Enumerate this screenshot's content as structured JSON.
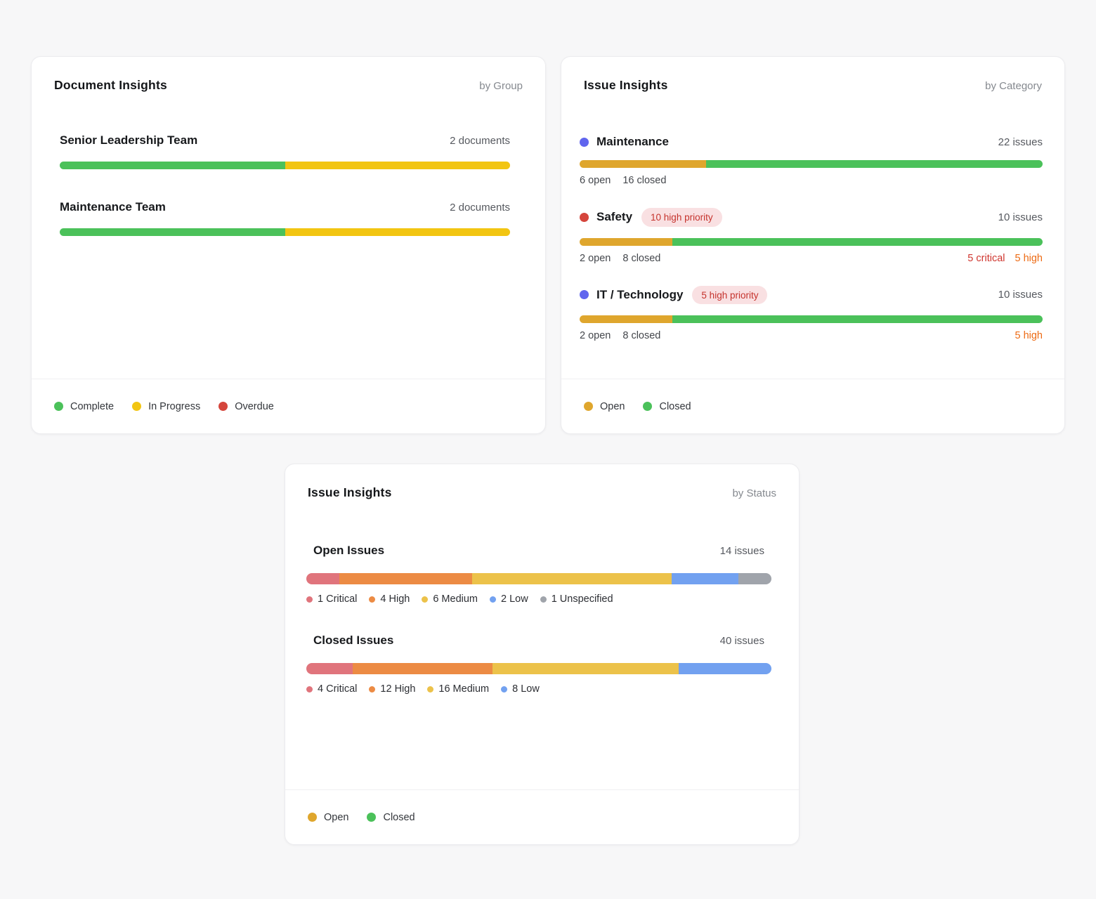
{
  "chart_data": [
    {
      "type": "bar",
      "title": "Document Insights",
      "subtitle": "by Group",
      "orientation": "horizontal",
      "stacked": true,
      "categories": [
        "Senior Leadership Team",
        "Maintenance Team"
      ],
      "category_totals": [
        "2 documents",
        "2 documents"
      ],
      "series": [
        {
          "name": "Complete",
          "color": "#4bc15a",
          "values": [
            1,
            1
          ]
        },
        {
          "name": "In Progress",
          "color": "#f2c512",
          "values": [
            1,
            1
          ]
        },
        {
          "name": "Overdue",
          "color": "#d5453c",
          "values": [
            0,
            0
          ]
        }
      ],
      "legend_position": "bottom"
    },
    {
      "type": "bar",
      "title": "Issue Insights",
      "subtitle": "by Category",
      "orientation": "horizontal",
      "stacked": true,
      "categories": [
        "Maintenance",
        "Safety",
        "IT / Technology"
      ],
      "category_totals": [
        "22 issues",
        "10 issues",
        "10 issues"
      ],
      "series": [
        {
          "name": "Open",
          "color": "#dfa62d",
          "values": [
            6,
            2,
            2
          ]
        },
        {
          "name": "Closed",
          "color": "#4bc15a",
          "values": [
            16,
            8,
            8
          ]
        }
      ],
      "annotations": [
        {
          "category": "Safety",
          "badge": "10 high priority",
          "notes": [
            "5 critical",
            "5 high"
          ]
        },
        {
          "category": "IT / Technology",
          "badge": "5 high priority",
          "notes": [
            "5 high"
          ]
        }
      ],
      "legend_position": "bottom"
    },
    {
      "type": "bar",
      "title": "Issue Insights",
      "subtitle": "by Status",
      "orientation": "horizontal",
      "stacked": true,
      "categories": [
        "Open Issues",
        "Closed Issues"
      ],
      "category_totals": [
        "14 issues",
        "40 issues"
      ],
      "series": [
        {
          "name": "Critical",
          "color": "#e0747c",
          "values": [
            1,
            4
          ]
        },
        {
          "name": "High",
          "color": "#ec8b44",
          "values": [
            4,
            12
          ]
        },
        {
          "name": "Medium",
          "color": "#ecc24a",
          "values": [
            6,
            16
          ]
        },
        {
          "name": "Low",
          "color": "#72a1f0",
          "values": [
            2,
            8
          ]
        },
        {
          "name": "Unspecified",
          "color": "#a0a4ab",
          "values": [
            1,
            0
          ]
        }
      ],
      "legend_position": "bottom"
    }
  ],
  "doc": {
    "title": "Document Insights",
    "subtitle": "by Group",
    "rows": [
      {
        "label": "Senior Leadership Team",
        "count": "2 documents",
        "bar": [
          {
            "label": "Complete",
            "value": 1,
            "color": "#4bc15a"
          },
          {
            "label": "In Progress",
            "value": 1,
            "color": "#f2c512"
          }
        ]
      },
      {
        "label": "Maintenance Team",
        "count": "2 documents",
        "bar": [
          {
            "label": "Complete",
            "value": 1,
            "color": "#4bc15a"
          },
          {
            "label": "In Progress",
            "value": 1,
            "color": "#f2c512"
          }
        ]
      }
    ],
    "legend": [
      {
        "label": "Complete",
        "color": "#4bc15a"
      },
      {
        "label": "In Progress",
        "color": "#f2c512"
      },
      {
        "label": "Overdue",
        "color": "#d5453c"
      }
    ]
  },
  "cat": {
    "title": "Issue Insights",
    "subtitle": "by Category",
    "rows": [
      {
        "label": "Maintenance",
        "dot_color": "#6065ee",
        "count": "22 issues",
        "open_stat": "6 open",
        "closed_stat": "16 closed",
        "bar": [
          {
            "label": "Open",
            "value": 6,
            "color": "#dfa62d"
          },
          {
            "label": "Closed",
            "value": 16,
            "color": "#4bc15a"
          }
        ]
      },
      {
        "label": "Safety",
        "dot_color": "#d5453c",
        "badge": "10 high priority",
        "count": "10 issues",
        "open_stat": "2 open",
        "closed_stat": "8 closed",
        "notes": [
          {
            "text": "5 critical",
            "color": "#cf352e"
          },
          {
            "text": "5 high",
            "color": "#ed6a13"
          }
        ],
        "bar": [
          {
            "label": "Open",
            "value": 2,
            "color": "#dfa62d"
          },
          {
            "label": "Closed",
            "value": 8,
            "color": "#4bc15a"
          }
        ]
      },
      {
        "label": "IT / Technology",
        "dot_color": "#6065ee",
        "badge": "5 high priority",
        "count": "10 issues",
        "open_stat": "2 open",
        "closed_stat": "8 closed",
        "notes": [
          {
            "text": "5 high",
            "color": "#ed6a13"
          }
        ],
        "bar": [
          {
            "label": "Open",
            "value": 2,
            "color": "#dfa62d"
          },
          {
            "label": "Closed",
            "value": 8,
            "color": "#4bc15a"
          }
        ]
      }
    ],
    "legend": [
      {
        "label": "Open",
        "color": "#dfa62d"
      },
      {
        "label": "Closed",
        "color": "#4bc15a"
      }
    ]
  },
  "status": {
    "title": "Issue Insights",
    "subtitle": "by Status",
    "sections": [
      {
        "label": "Open Issues",
        "count": "14 issues",
        "bar": [
          {
            "label": "1 Critical",
            "value": 1,
            "color": "#e0747c"
          },
          {
            "label": "4 High",
            "value": 4,
            "color": "#ec8b44"
          },
          {
            "label": "6 Medium",
            "value": 6,
            "color": "#ecc24a"
          },
          {
            "label": "2 Low",
            "value": 2,
            "color": "#72a1f0"
          },
          {
            "label": "1 Unspecified",
            "value": 1,
            "color": "#a0a4ab"
          }
        ]
      },
      {
        "label": "Closed Issues",
        "count": "40 issues",
        "bar": [
          {
            "label": "4 Critical",
            "value": 4,
            "color": "#e0747c"
          },
          {
            "label": "12 High",
            "value": 12,
            "color": "#ec8b44"
          },
          {
            "label": "16 Medium",
            "value": 16,
            "color": "#ecc24a"
          },
          {
            "label": "8 Low",
            "value": 8,
            "color": "#72a1f0"
          }
        ]
      }
    ],
    "legend": [
      {
        "label": "Open",
        "color": "#dfa62d"
      },
      {
        "label": "Closed",
        "color": "#4bc15a"
      }
    ]
  }
}
